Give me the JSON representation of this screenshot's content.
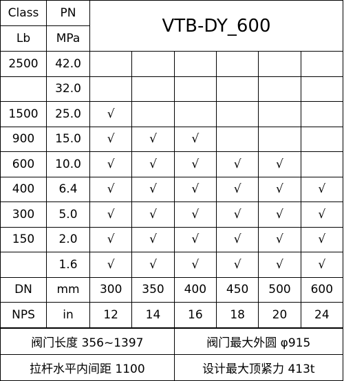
{
  "header": {
    "class": "Class",
    "pn": "PN",
    "lb": "Lb",
    "mpa": "MPa",
    "title": "VTB-DY_600"
  },
  "rows": [
    {
      "class": "2500",
      "pn": "42.0"
    },
    {
      "pn": "32.0"
    },
    {
      "class": "1500",
      "pn": "25.0",
      "checks": [
        "√"
      ]
    },
    {
      "class": "900",
      "pn": "15.0",
      "checks": [
        "√",
        "√",
        "√"
      ]
    },
    {
      "class": "600",
      "pn": "10.0",
      "checks": [
        "√",
        "√",
        "√",
        "√",
        "√"
      ]
    },
    {
      "class": "400",
      "pn": "6.4",
      "checks": [
        "√",
        "√",
        "√",
        "√",
        "√",
        "√"
      ]
    },
    {
      "class": "300",
      "pn": "5.0",
      "checks": [
        "√",
        "√",
        "√",
        "√",
        "√",
        "√"
      ]
    },
    {
      "class": "150",
      "pn": "2.0",
      "checks": [
        "√",
        "√",
        "√",
        "√",
        "√",
        "√"
      ]
    },
    {
      "pn": "1.6",
      "checks": [
        "√",
        "√",
        "√",
        "√",
        "√",
        "√"
      ]
    }
  ],
  "size_rows": [
    [
      "DN",
      "mm",
      "300",
      "350",
      "400",
      "450",
      "500",
      "600"
    ],
    [
      "NPS",
      "in",
      "12",
      "14",
      "16",
      "18",
      "20",
      "24"
    ]
  ],
  "footer": [
    [
      "阀门长度 356~1397",
      "阀门最大外圆 φ915"
    ],
    [
      "拉杆水平内间距 1100",
      "设计最大顶紧力 413t"
    ]
  ]
}
